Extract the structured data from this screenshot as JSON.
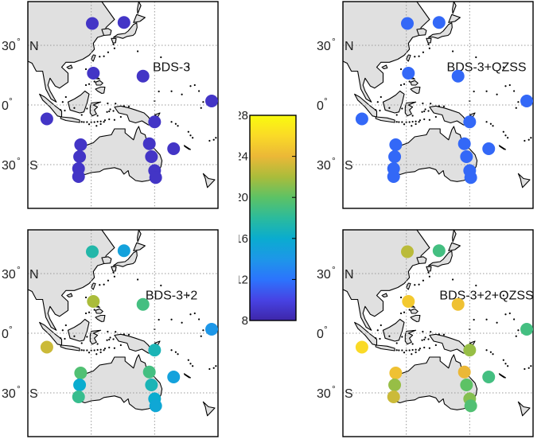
{
  "colorbar": {
    "ticks": [
      "8",
      "12",
      "16",
      "20",
      "24",
      "28"
    ],
    "min": 8,
    "max": 28,
    "colormap": [
      "#3e26a8",
      "#4743e4",
      "#2c74fd",
      "#1d97e8",
      "#0aaccf",
      "#2bbb9c",
      "#5dc265",
      "#aabc3b",
      "#ebb837",
      "#fada27",
      "#f9fb0e"
    ]
  },
  "axis_labels": {
    "lat_30n_deg": "30",
    "lat_30n_deg_symbol": "°",
    "lat_30n_hem": "N",
    "lat_0": "0",
    "lat_0_symbol": "°",
    "lat_30s_deg": "30",
    "lat_30s_deg_symbol": "°",
    "lat_30s_hem": "S"
  },
  "map": {
    "lon_range": [
      90,
      180
    ],
    "lat_range": [
      -52,
      52
    ],
    "grid_lons": [
      120,
      150
    ],
    "grid_lats": [
      30,
      0,
      -30
    ],
    "land_color": "#e0e0e0",
    "grid_style": "dotted"
  },
  "panels": [
    {
      "title": "BDS-3",
      "stations": [
        {
          "lon": 120.5,
          "lat": 41,
          "value": 9
        },
        {
          "lon": 135.5,
          "lat": 41.5,
          "value": 9
        },
        {
          "lon": 121,
          "lat": 16,
          "value": 9
        },
        {
          "lon": 144.5,
          "lat": 14.5,
          "value": 9
        },
        {
          "lon": 177,
          "lat": 2,
          "value": 9
        },
        {
          "lon": 99,
          "lat": -7,
          "value": 9
        },
        {
          "lon": 150,
          "lat": -8.5,
          "value": 9
        },
        {
          "lon": 159,
          "lat": -22,
          "value": 9
        },
        {
          "lon": 115,
          "lat": -20,
          "value": 9
        },
        {
          "lon": 114.5,
          "lat": -26,
          "value": 9
        },
        {
          "lon": 114,
          "lat": -32,
          "value": 9
        },
        {
          "lon": 114,
          "lat": -36,
          "value": 9
        },
        {
          "lon": 147.5,
          "lat": -19.5,
          "value": 9
        },
        {
          "lon": 148.5,
          "lat": -26,
          "value": 9
        },
        {
          "lon": 150,
          "lat": -33,
          "value": 9
        },
        {
          "lon": 150.5,
          "lat": -36.5,
          "value": 9
        }
      ]
    },
    {
      "title": "BDS-3+QZSS",
      "stations": [
        {
          "lon": 120.5,
          "lat": 41,
          "value": 11.5
        },
        {
          "lon": 135.5,
          "lat": 41.5,
          "value": 11.5
        },
        {
          "lon": 121,
          "lat": 16,
          "value": 11.5
        },
        {
          "lon": 144.5,
          "lat": 14.5,
          "value": 11.5
        },
        {
          "lon": 177,
          "lat": 2,
          "value": 11.5
        },
        {
          "lon": 99,
          "lat": -7,
          "value": 11.5
        },
        {
          "lon": 150,
          "lat": -8.5,
          "value": 11.5
        },
        {
          "lon": 159,
          "lat": -22,
          "value": 11.5
        },
        {
          "lon": 115,
          "lat": -20,
          "value": 11.5
        },
        {
          "lon": 114.5,
          "lat": -26,
          "value": 11.5
        },
        {
          "lon": 114,
          "lat": -32,
          "value": 11.5
        },
        {
          "lon": 114,
          "lat": -36,
          "value": 11.5
        },
        {
          "lon": 147.5,
          "lat": -19.5,
          "value": 11.5
        },
        {
          "lon": 148.5,
          "lat": -26,
          "value": 11.5
        },
        {
          "lon": 150,
          "lat": -33,
          "value": 11.5
        },
        {
          "lon": 150.5,
          "lat": -36.5,
          "value": 11.5
        }
      ]
    },
    {
      "title": "BDS-3+2",
      "stations": [
        {
          "lon": 120.5,
          "lat": 41,
          "value": 17.5
        },
        {
          "lon": 135.5,
          "lat": 41.5,
          "value": 15
        },
        {
          "lon": 121,
          "lat": 16,
          "value": 22
        },
        {
          "lon": 144.5,
          "lat": 14.5,
          "value": 19
        },
        {
          "lon": 177,
          "lat": 2,
          "value": 14
        },
        {
          "lon": 99,
          "lat": -7,
          "value": 23
        },
        {
          "lon": 150,
          "lat": -8.5,
          "value": 17
        },
        {
          "lon": 159,
          "lat": -22,
          "value": 15
        },
        {
          "lon": 115,
          "lat": -20,
          "value": 19.5
        },
        {
          "lon": 114.5,
          "lat": -26,
          "value": 16
        },
        {
          "lon": 114,
          "lat": -32,
          "value": 18.5
        },
        {
          "lon": 147.5,
          "lat": -19.5,
          "value": 19
        },
        {
          "lon": 148.5,
          "lat": -26,
          "value": 17
        },
        {
          "lon": 150,
          "lat": -33,
          "value": 16
        },
        {
          "lon": 150.5,
          "lat": -36.5,
          "value": 15.5
        }
      ]
    },
    {
      "title": "BDS-3+2+QZSS",
      "stations": [
        {
          "lon": 120.5,
          "lat": 41,
          "value": 22.5
        },
        {
          "lon": 135.5,
          "lat": 41.5,
          "value": 19
        },
        {
          "lon": 121,
          "lat": 16,
          "value": 25
        },
        {
          "lon": 144.5,
          "lat": 14.5,
          "value": 24.5
        },
        {
          "lon": 177,
          "lat": 2,
          "value": 19
        },
        {
          "lon": 99,
          "lat": -7,
          "value": 26
        },
        {
          "lon": 150,
          "lat": -8.5,
          "value": 21.5
        },
        {
          "lon": 159,
          "lat": -22,
          "value": 19
        },
        {
          "lon": 115,
          "lat": -20,
          "value": 24.5
        },
        {
          "lon": 114.5,
          "lat": -26,
          "value": 21.5
        },
        {
          "lon": 114,
          "lat": -32,
          "value": 23
        },
        {
          "lon": 147.5,
          "lat": -19.5,
          "value": 24
        },
        {
          "lon": 148.5,
          "lat": -26,
          "value": 20
        },
        {
          "lon": 150,
          "lat": -33,
          "value": 21
        },
        {
          "lon": 150.5,
          "lat": -36.5,
          "value": 19.5
        }
      ]
    }
  ]
}
